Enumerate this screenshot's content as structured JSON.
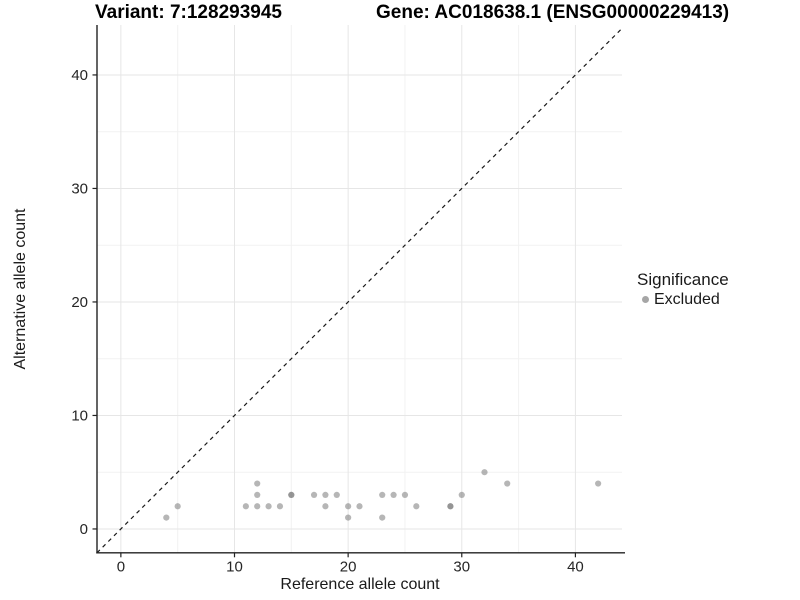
{
  "chart_data": {
    "type": "scatter",
    "titles": [
      "Variant: 7:128293945",
      "Gene: AC018638.1 (ENSG00000229413)"
    ],
    "xlabel": "Reference allele count",
    "ylabel": "Alternative allele count",
    "xlim": [
      -2.1,
      44.1
    ],
    "ylim": [
      -2.1,
      44.4
    ],
    "xticks": [
      0,
      10,
      20,
      30,
      40
    ],
    "yticks": [
      0,
      10,
      20,
      30,
      40
    ],
    "minor_breaks": [
      5,
      15,
      25,
      35
    ],
    "grid": true,
    "legend": {
      "title": "Significance",
      "entries": [
        "Excluded"
      ],
      "position": "right",
      "key_color": "#a6a6a6"
    },
    "identity_line": {
      "equation": "y = x",
      "style": "dashed",
      "color": "#1a1a1a"
    },
    "series": [
      {
        "name": "Excluded",
        "color": "#7a7a7a",
        "opacity": 0.55,
        "points": [
          [
            4,
            1
          ],
          [
            5,
            2
          ],
          [
            11,
            2
          ],
          [
            12,
            2
          ],
          [
            12,
            3
          ],
          [
            12,
            4
          ],
          [
            13,
            2
          ],
          [
            14,
            2
          ],
          [
            15,
            3
          ],
          [
            15,
            3
          ],
          [
            17,
            3
          ],
          [
            18,
            2
          ],
          [
            18,
            3
          ],
          [
            19,
            3
          ],
          [
            20,
            1
          ],
          [
            20,
            2
          ],
          [
            21,
            2
          ],
          [
            23,
            1
          ],
          [
            23,
            3
          ],
          [
            24,
            3
          ],
          [
            25,
            3
          ],
          [
            26,
            2
          ],
          [
            29,
            2
          ],
          [
            29,
            2
          ],
          [
            30,
            3
          ],
          [
            32,
            5
          ],
          [
            34,
            4
          ],
          [
            42,
            4
          ]
        ]
      }
    ],
    "style": {
      "axis_line_color": "#222222",
      "tick_label_color": "#262626",
      "grid_major_color": "#e6e6e6",
      "grid_minor_color": "#f2f2f2",
      "background": "#ffffff"
    }
  }
}
